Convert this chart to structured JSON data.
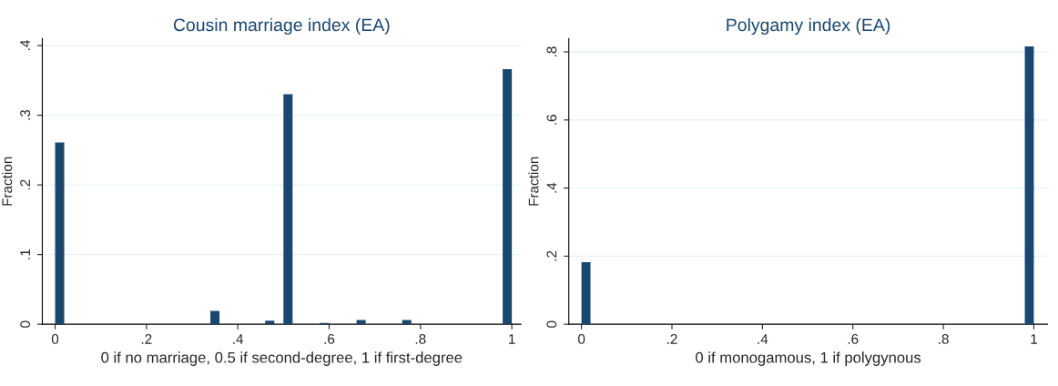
{
  "chart_data": [
    {
      "type": "histogram",
      "title": "Cousin marriage index (EA)",
      "xlabel": "0 if no marriage, 0.5 if second-degree, 1 if first-degree",
      "ylabel": "Fraction",
      "color": "#1a476f",
      "bins": [
        0,
        0.02,
        0.04,
        0.06,
        0.08,
        0.1,
        0.12,
        0.14,
        0.16,
        0.18,
        0.2,
        0.22,
        0.24,
        0.26,
        0.28,
        0.3,
        0.32,
        0.34,
        0.36,
        0.38,
        0.4,
        0.42,
        0.44,
        0.46,
        0.48,
        0.5,
        0.52,
        0.54,
        0.56,
        0.58,
        0.6,
        0.62,
        0.64,
        0.66,
        0.68,
        0.7,
        0.72,
        0.74,
        0.76,
        0.78,
        0.8,
        0.82,
        0.84,
        0.86,
        0.88,
        0.9,
        0.92,
        0.94,
        0.96,
        0.98,
        1
      ],
      "values": [
        0.261,
        0,
        0,
        0,
        0,
        0,
        0,
        0,
        0,
        0,
        0,
        0,
        0,
        0,
        0,
        0,
        0,
        0.019,
        0,
        0,
        0,
        0,
        0,
        0.005,
        0,
        0.33,
        0,
        0,
        0,
        0.002,
        0,
        0,
        0,
        0.006,
        0,
        0,
        0,
        0,
        0.006,
        0,
        0,
        0,
        0,
        0,
        0,
        0,
        0,
        0,
        0,
        0.366
      ],
      "xlim": [
        -0.028,
        1.02
      ],
      "ylim": [
        0,
        0.41
      ],
      "xticks": [
        0,
        {
          "value": 0.2,
          "label": ".2"
        },
        {
          "value": 0.4,
          "label": ".4"
        },
        {
          "value": 0.6,
          "label": ".6"
        },
        {
          "value": 0.8,
          "label": ".8"
        },
        1
      ],
      "yticks": [
        0,
        {
          "value": 0.1,
          "label": ".1"
        },
        {
          "value": 0.2,
          "label": ".2"
        },
        {
          "value": 0.3,
          "label": ".3"
        },
        {
          "value": 0.4,
          "label": ".4"
        }
      ],
      "grid": "y"
    },
    {
      "type": "histogram",
      "title": "Polygamy index (EA)",
      "xlabel": "0 if monogamous, 1 if polygynous",
      "ylabel": "Fraction",
      "color": "#1a476f",
      "bins": [
        0,
        0.02,
        0.04,
        0.06,
        0.08,
        0.1,
        0.12,
        0.14,
        0.16,
        0.18,
        0.2,
        0.22,
        0.24,
        0.26,
        0.28,
        0.3,
        0.32,
        0.34,
        0.36,
        0.38,
        0.4,
        0.42,
        0.44,
        0.46,
        0.48,
        0.5,
        0.52,
        0.54,
        0.56,
        0.58,
        0.6,
        0.62,
        0.64,
        0.66,
        0.68,
        0.7,
        0.72,
        0.74,
        0.76,
        0.78,
        0.8,
        0.82,
        0.84,
        0.86,
        0.88,
        0.9,
        0.92,
        0.94,
        0.96,
        0.98,
        1
      ],
      "values": [
        0.182,
        0,
        0,
        0,
        0,
        0,
        0,
        0,
        0,
        0,
        0,
        0,
        0,
        0,
        0,
        0,
        0,
        0,
        0,
        0,
        0,
        0,
        0,
        0,
        0,
        0,
        0,
        0,
        0,
        0,
        0,
        0,
        0,
        0,
        0,
        0,
        0,
        0,
        0,
        0,
        0,
        0,
        0,
        0,
        0,
        0,
        0,
        0,
        0,
        0.816
      ],
      "xlim": [
        -0.028,
        1.03
      ],
      "ylim": [
        0,
        0.839
      ],
      "xticks": [
        0,
        {
          "value": 0.2,
          "label": ".2"
        },
        {
          "value": 0.4,
          "label": ".4"
        },
        {
          "value": 0.6,
          "label": ".6"
        },
        {
          "value": 0.8,
          "label": ".8"
        },
        1
      ],
      "yticks": [
        0,
        {
          "value": 0.2,
          "label": ".2"
        },
        {
          "value": 0.4,
          "label": ".4"
        },
        {
          "value": 0.6,
          "label": ".6"
        },
        {
          "value": 0.8,
          "label": ".8"
        }
      ],
      "grid": "y"
    }
  ]
}
